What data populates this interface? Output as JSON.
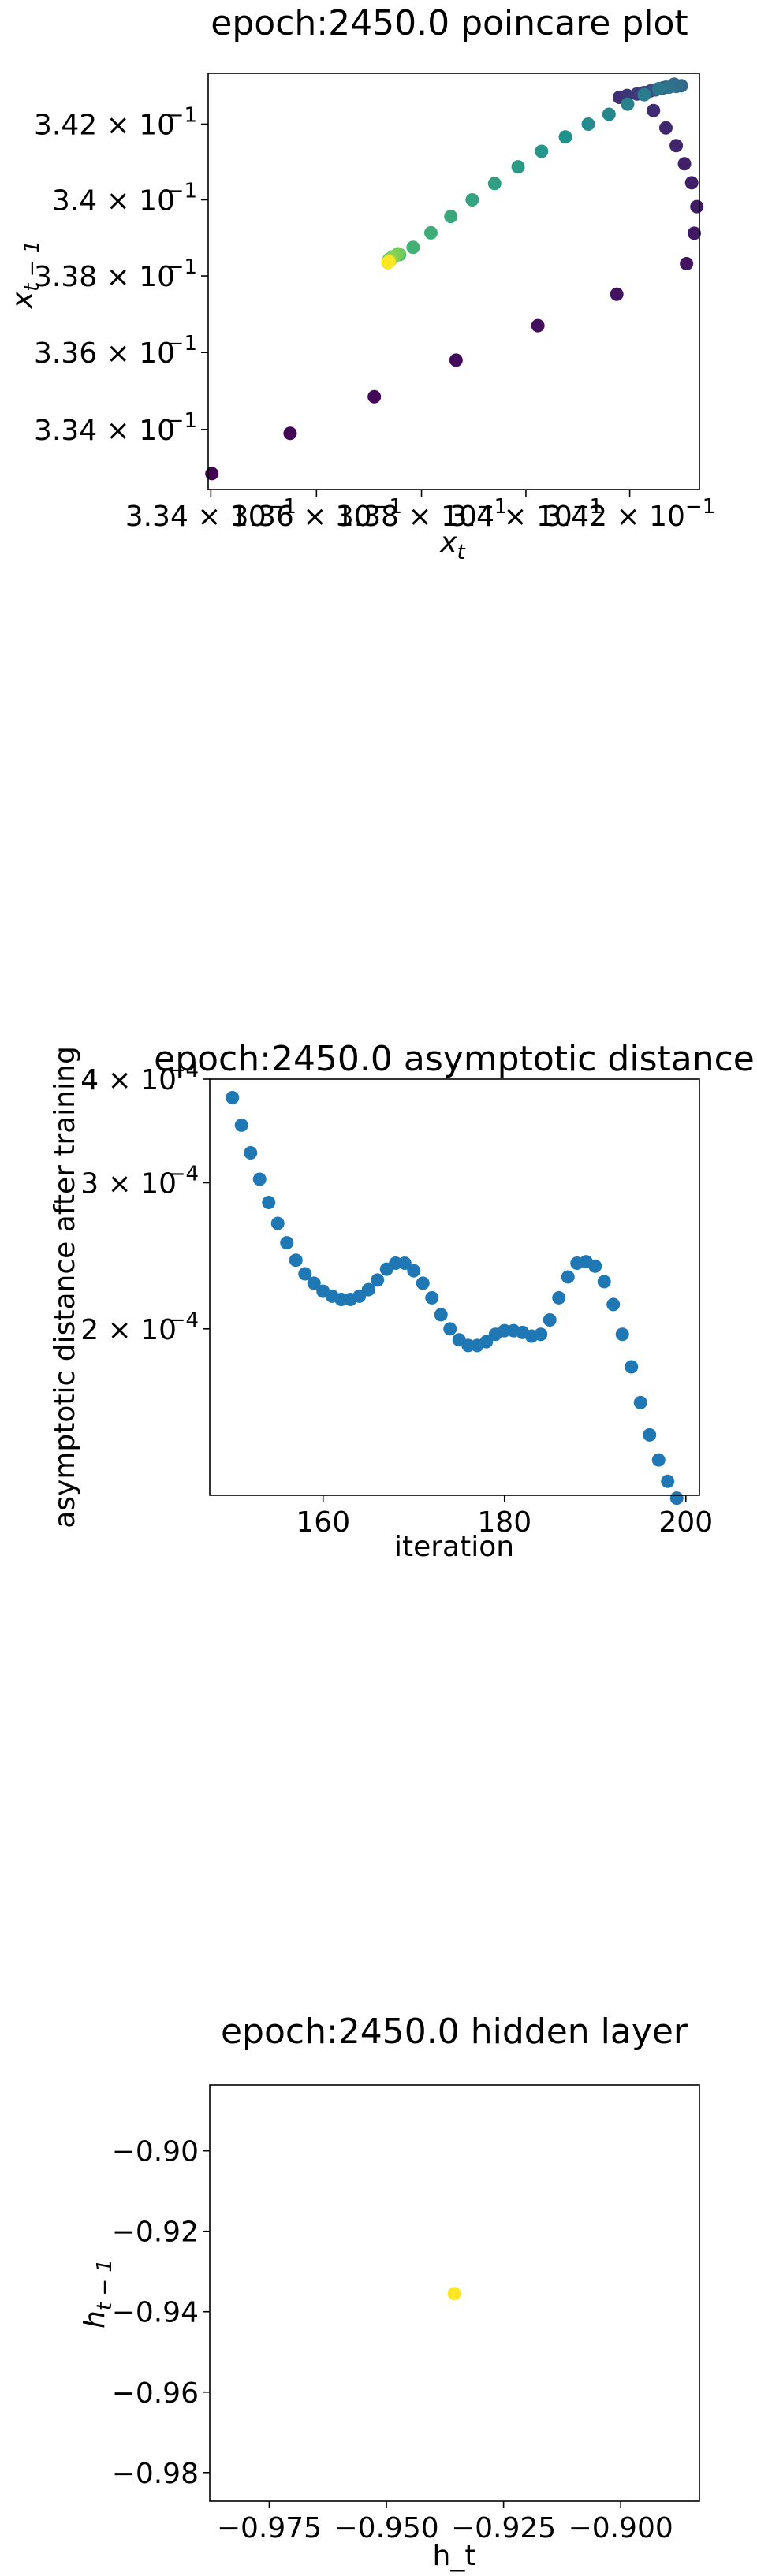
{
  "chart_data": [
    {
      "type": "scatter",
      "title": "epoch:2450.0 poincare plot",
      "xscale": "log",
      "yscale": "log",
      "xlabel": {
        "base": "x",
        "sub": "t"
      },
      "ylabel": {
        "base": "x",
        "sub": "t − 1"
      },
      "xlim": [
        0.33395,
        0.34335
      ],
      "ylim": [
        0.33245,
        0.34335
      ],
      "x_ticks": [
        {
          "value": 0.334,
          "mant": "3.34 × 10",
          "exp": "−1"
        },
        {
          "value": 0.336,
          "mant": "3.36 × 10",
          "exp": "−1"
        },
        {
          "value": 0.338,
          "mant": "3.38 × 10",
          "exp": "−1"
        },
        {
          "value": 0.34,
          "mant": "3.4 × 10",
          "exp": "−1"
        },
        {
          "value": 0.342,
          "mant": "3.42 × 10",
          "exp": "−1"
        }
      ],
      "y_ticks": [
        {
          "value": 0.334,
          "mant": "3.34 × 10",
          "exp": "−1"
        },
        {
          "value": 0.336,
          "mant": "3.36 × 10",
          "exp": "−1"
        },
        {
          "value": 0.338,
          "mant": "3.38 × 10",
          "exp": "−1"
        },
        {
          "value": 0.34,
          "mant": "3.4 × 10",
          "exp": "−1"
        },
        {
          "value": 0.342,
          "mant": "3.42 × 10",
          "exp": "−1"
        }
      ],
      "colormap": [
        "#440154",
        "#3b528b",
        "#21918c",
        "#5ec962",
        "#fde725"
      ],
      "points": [
        [
          0.33402,
          0.33286,
          0.0
        ],
        [
          0.3355,
          0.3339,
          0.01
        ],
        [
          0.3371,
          0.33485,
          0.02
        ],
        [
          0.33866,
          0.3358,
          0.03
        ],
        [
          0.34023,
          0.3367,
          0.04
        ],
        [
          0.34175,
          0.33752,
          0.05
        ],
        [
          0.3431,
          0.33832,
          0.06
        ],
        [
          0.34325,
          0.33912,
          0.07
        ],
        [
          0.3433,
          0.33982,
          0.08
        ],
        [
          0.3432,
          0.34045,
          0.09
        ],
        [
          0.34306,
          0.34095,
          0.1
        ],
        [
          0.3429,
          0.34143,
          0.11
        ],
        [
          0.3427,
          0.3419,
          0.12
        ],
        [
          0.34246,
          0.34236,
          0.13
        ],
        [
          0.3418,
          0.34271,
          0.14
        ],
        [
          0.34195,
          0.34276,
          0.16
        ],
        [
          0.34214,
          0.3428,
          0.18
        ],
        [
          0.34228,
          0.34284,
          0.2
        ],
        [
          0.3424,
          0.34288,
          0.22
        ],
        [
          0.3425,
          0.34291,
          0.24
        ],
        [
          0.34258,
          0.34294,
          0.26
        ],
        [
          0.34264,
          0.34296,
          0.28
        ],
        [
          0.3427,
          0.34298,
          0.3
        ],
        [
          0.34286,
          0.34306,
          0.32
        ],
        [
          0.343,
          0.34302,
          0.34
        ],
        [
          0.3429,
          0.343,
          0.36
        ],
        [
          0.34276,
          0.34298,
          0.38
        ],
        [
          0.34256,
          0.34294,
          0.4
        ],
        [
          0.34228,
          0.34278,
          0.42
        ],
        [
          0.34196,
          0.34253,
          0.44
        ],
        [
          0.3416,
          0.34226,
          0.46
        ],
        [
          0.3412,
          0.342,
          0.48
        ],
        [
          0.34076,
          0.34166,
          0.5
        ],
        [
          0.3403,
          0.34128,
          0.52
        ],
        [
          0.33985,
          0.34087,
          0.54
        ],
        [
          0.3394,
          0.34043,
          0.56
        ],
        [
          0.33897,
          0.34,
          0.58
        ],
        [
          0.33856,
          0.33956,
          0.6
        ],
        [
          0.33818,
          0.33913,
          0.62
        ],
        [
          0.33784,
          0.33875,
          0.64
        ],
        [
          0.33758,
          0.33856,
          0.66
        ],
        [
          0.33745,
          0.3385,
          0.68
        ],
        [
          0.3374,
          0.33845,
          0.7
        ],
        [
          0.33738,
          0.33843,
          0.72
        ],
        [
          0.33742,
          0.33846,
          0.74
        ],
        [
          0.33748,
          0.33851,
          0.76
        ],
        [
          0.33755,
          0.33858,
          0.78
        ],
        [
          0.33749,
          0.33852,
          0.8
        ],
        [
          0.33744,
          0.33846,
          0.82
        ],
        [
          0.33741,
          0.33842,
          0.84
        ],
        [
          0.33739,
          0.3384,
          0.86
        ],
        [
          0.33738,
          0.33838,
          0.88
        ],
        [
          0.33737,
          0.33837,
          0.9
        ],
        [
          0.33736,
          0.33836,
          0.92
        ],
        [
          0.33736,
          0.33835,
          0.94
        ],
        [
          0.33736,
          0.33835,
          0.96
        ],
        [
          0.33737,
          0.33836,
          0.98
        ],
        [
          0.33738,
          0.33837,
          1.0
        ]
      ]
    },
    {
      "type": "scatter",
      "title": "epoch:2450.0 asymptotic distance",
      "xlabel": "iteration",
      "ylabel": "asymptotic distance after training",
      "yscale": "log",
      "xlim": [
        147.5,
        201.5
      ],
      "ylim": [
        0.000126,
        0.0004
      ],
      "x_ticks": [
        {
          "value": 160,
          "label": "160"
        },
        {
          "value": 180,
          "label": "180"
        },
        {
          "value": 200,
          "label": "200"
        }
      ],
      "y_ticks": [
        {
          "value": 0.0002,
          "mant": "2 × 10",
          "exp": "−4"
        },
        {
          "value": 0.0003,
          "mant": "3 × 10",
          "exp": "−4"
        },
        {
          "value": 0.0004,
          "mant": "4 × 10",
          "exp": "−4"
        }
      ],
      "color": "#1f77b4",
      "x": [
        150,
        151,
        152,
        153,
        154,
        155,
        156,
        157,
        158,
        159,
        160,
        161,
        162,
        163,
        164,
        165,
        166,
        167,
        168,
        169,
        170,
        171,
        172,
        173,
        174,
        175,
        176,
        177,
        178,
        179,
        180,
        181,
        182,
        183,
        184,
        185,
        186,
        187,
        188,
        189,
        190,
        191,
        192,
        193,
        194,
        195,
        196,
        197,
        198,
        199
      ],
      "y": [
        0.00038,
        0.000352,
        0.000326,
        0.000303,
        0.000284,
        0.000268,
        0.000254,
        0.000242,
        0.000233,
        0.000227,
        0.000222,
        0.000219,
        0.000217,
        0.000217,
        0.000219,
        0.000223,
        0.000229,
        0.000236,
        0.00024,
        0.00024,
        0.000235,
        0.000227,
        0.000218,
        0.000208,
        0.0002,
        0.000194,
        0.000191,
        0.000191,
        0.000193,
        0.000197,
        0.000199,
        0.000199,
        0.000198,
        0.000196,
        0.000197,
        0.000205,
        0.000218,
        0.000231,
        0.00024,
        0.000241,
        0.000238,
        0.000228,
        0.000214,
        0.000197,
        0.00018,
        0.000163,
        0.000149,
        0.000139,
        0.000131,
        0.000125
      ]
    },
    {
      "type": "scatter",
      "title": "epoch:2450.0 hidden layer",
      "xlabel": "h_t",
      "ylabel": {
        "base": "h",
        "sub": "t − 1"
      },
      "xlim": [
        -0.9877,
        -0.8832
      ],
      "ylim": [
        -0.9871,
        -0.8836
      ],
      "x_ticks": [
        {
          "value": -0.975,
          "label": "−0.975"
        },
        {
          "value": -0.95,
          "label": "−0.950"
        },
        {
          "value": -0.925,
          "label": "−0.925"
        },
        {
          "value": -0.9,
          "label": "−0.900"
        }
      ],
      "y_ticks": [
        {
          "value": -0.9,
          "label": "−0.90"
        },
        {
          "value": -0.92,
          "label": "−0.92"
        },
        {
          "value": -0.94,
          "label": "−0.94"
        },
        {
          "value": -0.96,
          "label": "−0.96"
        },
        {
          "value": -0.98,
          "label": "−0.98"
        }
      ],
      "color": "#fde725",
      "points": [
        [
          -0.9355,
          -0.9355
        ]
      ]
    }
  ]
}
